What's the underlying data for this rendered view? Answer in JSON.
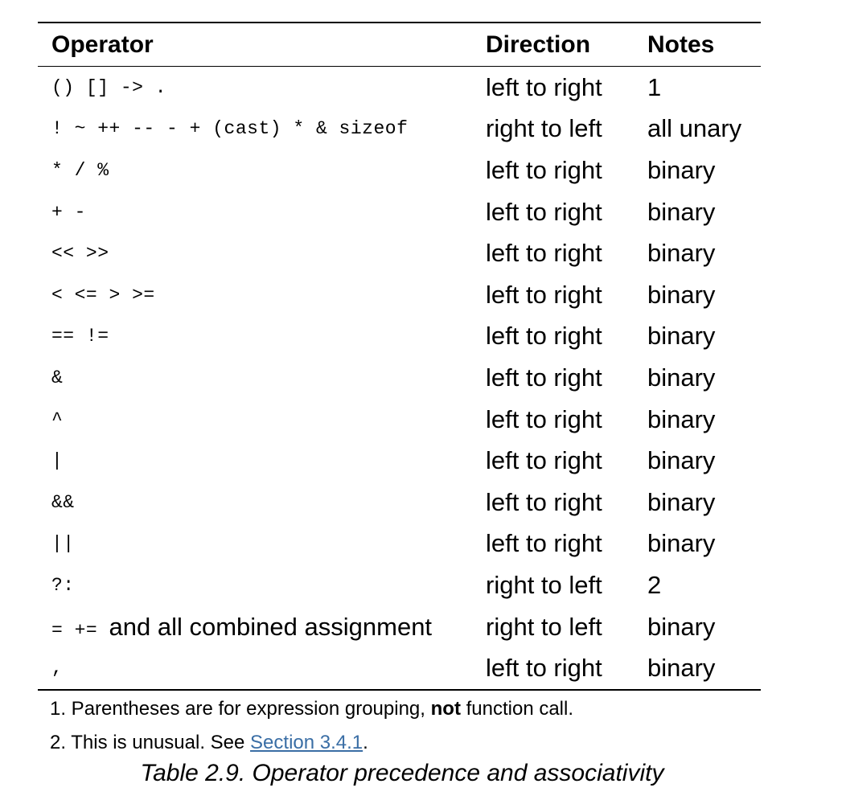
{
  "table": {
    "headers": [
      "Operator",
      "Direction",
      "Notes"
    ],
    "rows": [
      {
        "op": "() [] -> .",
        "dir": "left to right",
        "note": "1"
      },
      {
        "op": "! ~ ++ -- - + (cast) * & sizeof",
        "dir": "right to left",
        "note": "all unary"
      },
      {
        "op": "* / %",
        "dir": "left to right",
        "note": "binary"
      },
      {
        "op": "+ -",
        "dir": "left to right",
        "note": "binary"
      },
      {
        "op": "<< >>",
        "dir": "left to right",
        "note": "binary"
      },
      {
        "op": "< <= > >=",
        "dir": "left to right",
        "note": "binary"
      },
      {
        "op": "== !=",
        "dir": "left to right",
        "note": "binary"
      },
      {
        "op": "&",
        "dir": "left to right",
        "note": "binary"
      },
      {
        "op": "^",
        "dir": "left to right",
        "note": "binary"
      },
      {
        "op": "|",
        "dir": "left to right",
        "note": "binary"
      },
      {
        "op": "&&",
        "dir": "left to right",
        "note": "binary"
      },
      {
        "op": "||",
        "dir": "left to right",
        "note": "binary"
      },
      {
        "op": "?:",
        "dir": "right to left",
        "note": "2"
      },
      {
        "op": "= +=",
        "op_text": "and all combined assignment",
        "dir": "right to left",
        "note": "binary"
      },
      {
        "op": ",",
        "dir": "left to right",
        "note": "binary"
      }
    ]
  },
  "footnotes": {
    "note1_prefix": "1. Parentheses are for expression grouping, ",
    "note1_bold": "not",
    "note1_suffix": " function call.",
    "note2_prefix": "2. This is unusual. See ",
    "note2_link": "Section 3.4.1",
    "note2_suffix": "."
  },
  "caption": "Table 2.9. Operator precedence and associativity",
  "colors": {
    "link": "#3a6ea5",
    "rule": "#000000"
  }
}
